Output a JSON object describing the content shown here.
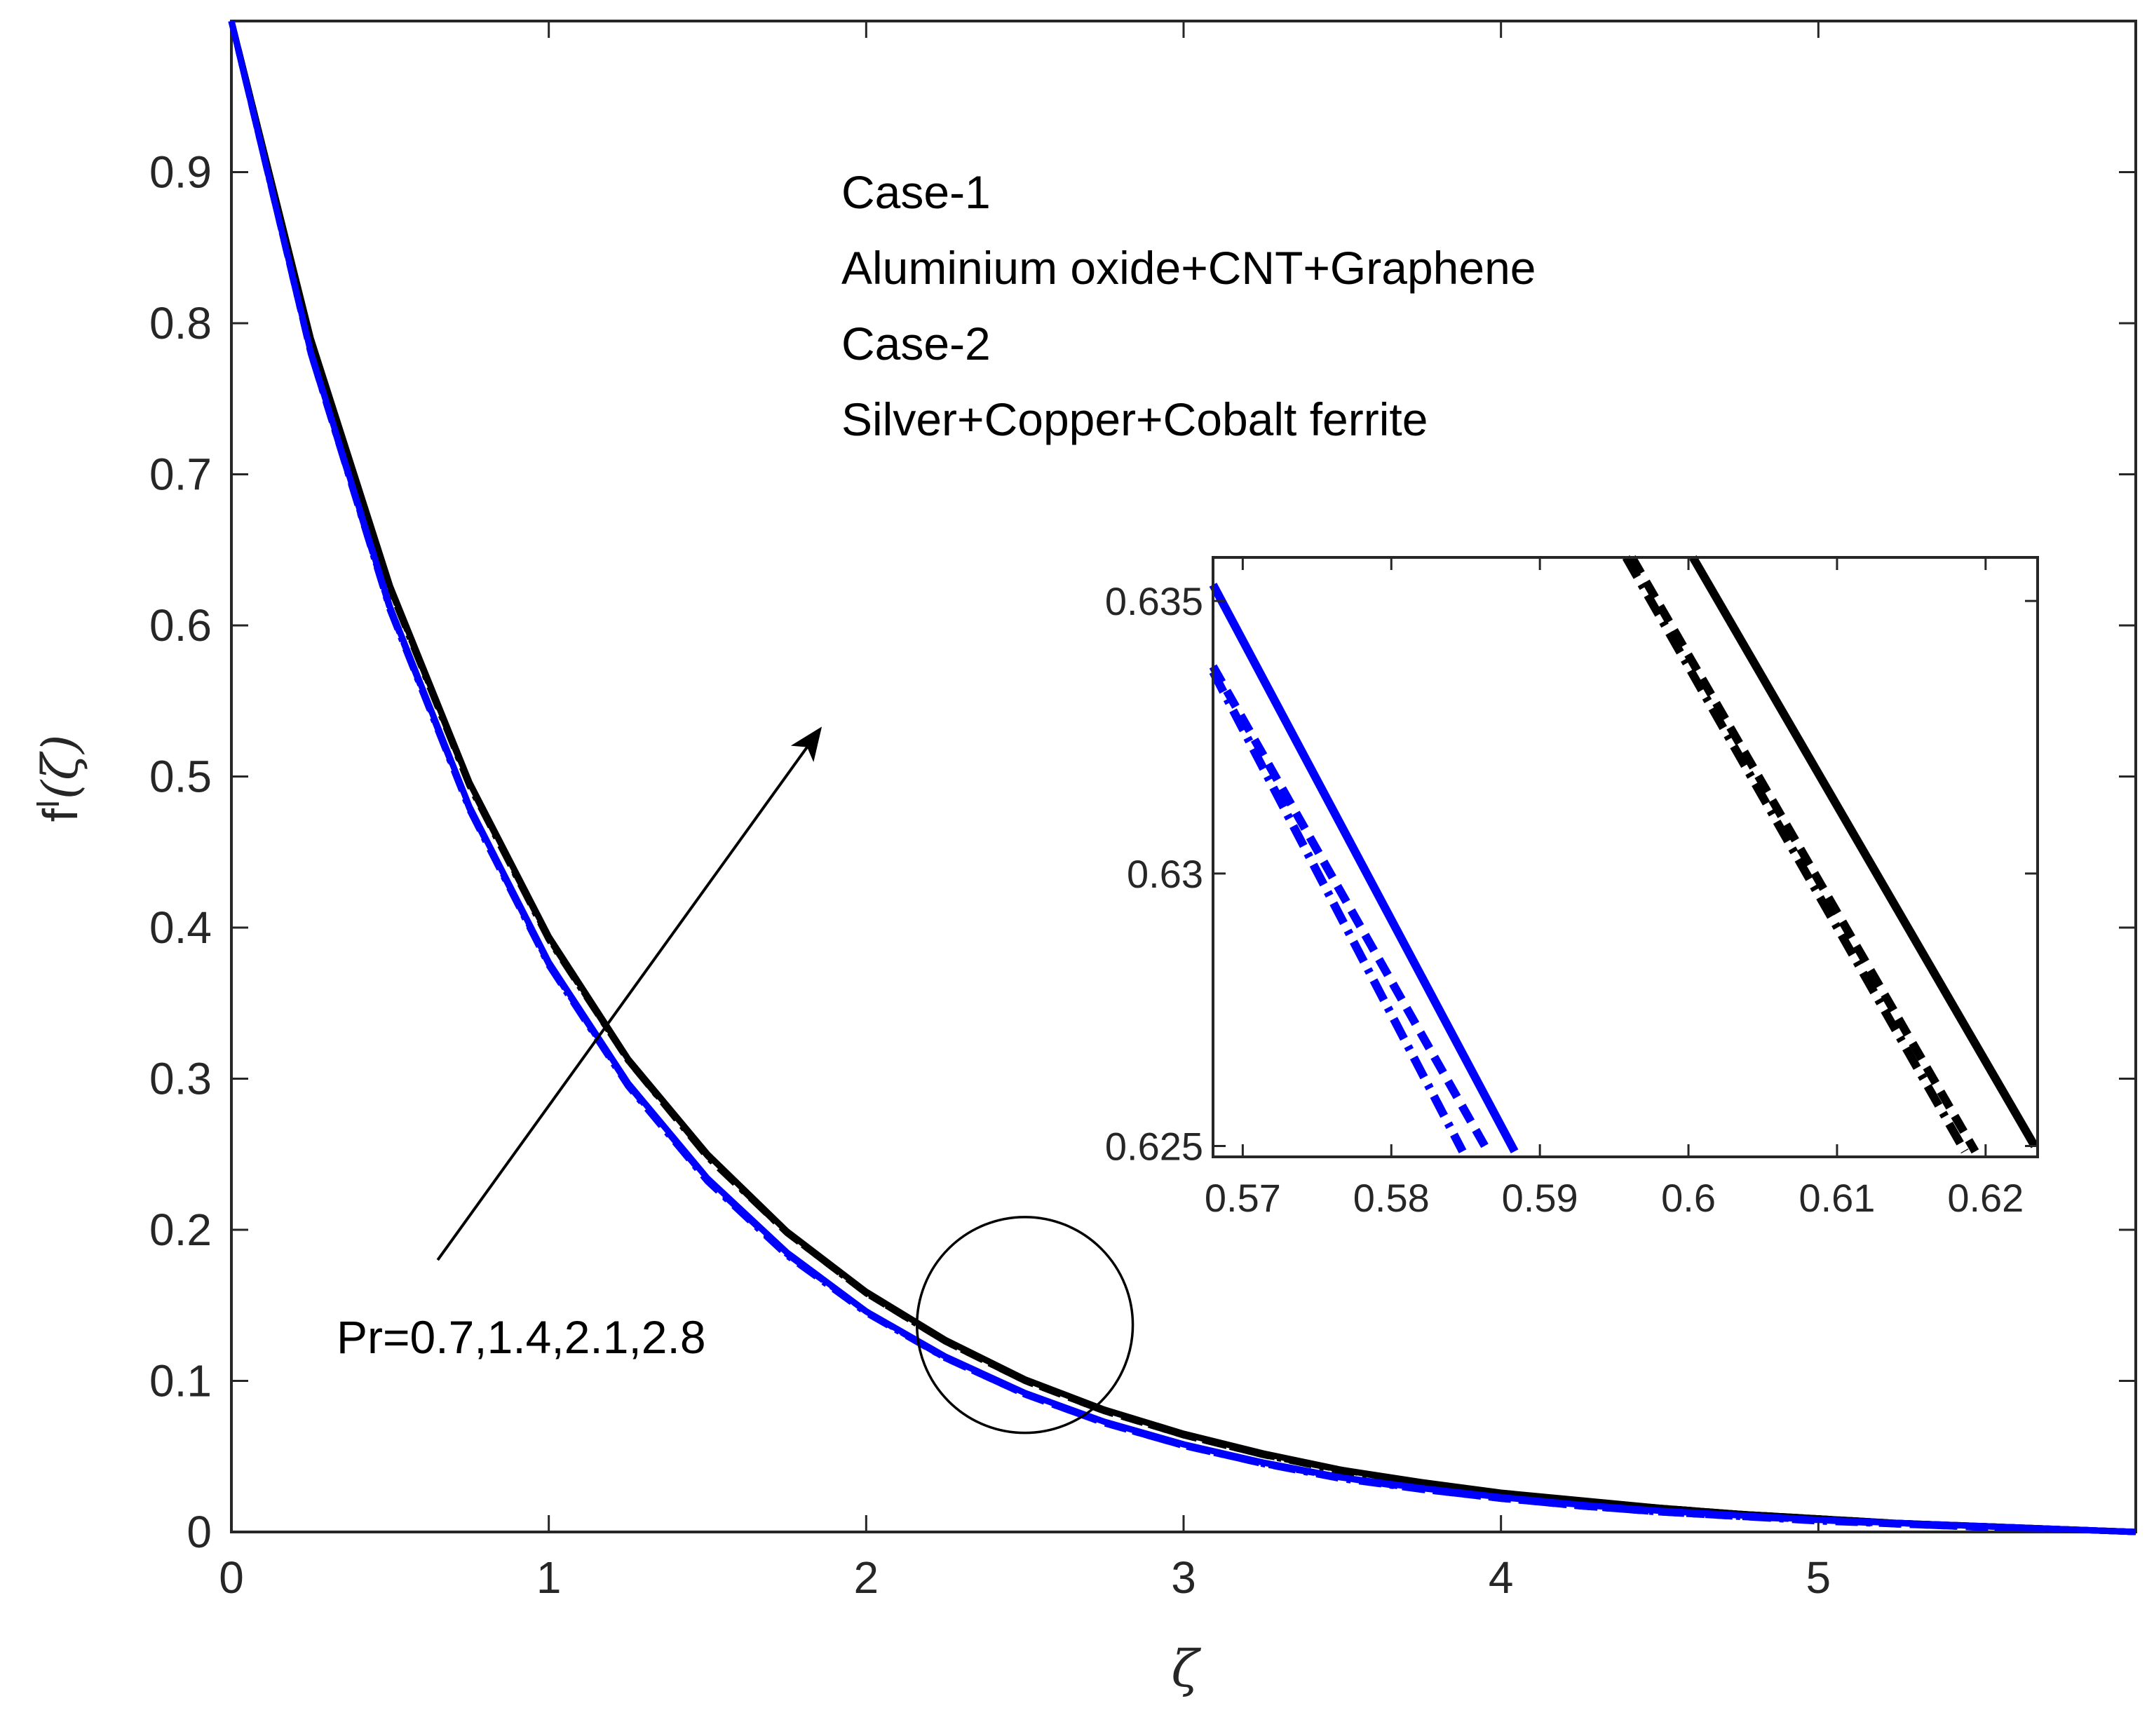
{
  "colors": {
    "case1": "#000000",
    "case2": "#0000ff",
    "axis": "#262626"
  },
  "annotations": {
    "case1_label": "Case-1",
    "case1_desc": "Aluminium oxide+CNT+Graphene",
    "case2_label": "Case-2",
    "case2_desc": "Silver+Copper+Cobalt ferrite",
    "pr_label": "Pr=0.7,1.4,2.1,2.8"
  },
  "chart_data": [
    {
      "name": "main",
      "type": "line",
      "xlabel": "ζ",
      "ylabel_main": "f",
      "ylabel_sup": "I",
      "ylabel_arg": "(ζ)",
      "xlim": [
        0,
        6
      ],
      "ylim": [
        0,
        1
      ],
      "xticks": [
        0,
        1,
        2,
        3,
        4,
        5
      ],
      "yticks": [
        0,
        0.1,
        0.2,
        0.3,
        0.4,
        0.5,
        0.6,
        0.7,
        0.8,
        0.9
      ],
      "xtick_labels": [
        "0",
        "1",
        "2",
        "3",
        "4",
        "5"
      ],
      "ytick_labels": [
        "0",
        "0.1",
        "0.2",
        "0.3",
        "0.4",
        "0.5",
        "0.6",
        "0.7",
        "0.8",
        "0.9"
      ],
      "x": [
        0,
        0.25,
        0.5,
        0.75,
        1.0,
        1.25,
        1.5,
        1.75,
        2.0,
        2.25,
        2.5,
        2.75,
        3.0,
        3.25,
        3.5,
        3.75,
        4.0,
        4.25,
        4.5,
        4.75,
        5.0,
        5.25,
        5.5,
        5.75,
        6.0
      ],
      "series": [
        {
          "name": "Case-1, Pr=0.7",
          "case": "case1",
          "dash": "solid",
          "values": [
            1.0,
            0.79,
            0.626,
            0.496,
            0.394,
            0.313,
            0.25,
            0.199,
            0.159,
            0.127,
            0.101,
            0.081,
            0.065,
            0.052,
            0.041,
            0.033,
            0.026,
            0.021,
            0.016,
            0.012,
            0.009,
            0.006,
            0.004,
            0.002,
            0.0
          ]
        },
        {
          "name": "Case-1, Pr=1.4",
          "case": "case1",
          "dash": "dash",
          "values": [
            1.0,
            0.789,
            0.625,
            0.495,
            0.393,
            0.312,
            0.249,
            0.198,
            0.158,
            0.126,
            0.1,
            0.08,
            0.064,
            0.051,
            0.041,
            0.032,
            0.026,
            0.02,
            0.016,
            0.012,
            0.009,
            0.006,
            0.004,
            0.002,
            0.0
          ]
        },
        {
          "name": "Case-1, Pr=2.1",
          "case": "case1",
          "dash": "dashdot",
          "values": [
            1.0,
            0.789,
            0.624,
            0.494,
            0.392,
            0.312,
            0.248,
            0.198,
            0.158,
            0.126,
            0.1,
            0.08,
            0.064,
            0.051,
            0.04,
            0.032,
            0.025,
            0.02,
            0.016,
            0.012,
            0.009,
            0.006,
            0.004,
            0.002,
            0.0
          ]
        },
        {
          "name": "Case-2, Pr=0.7",
          "case": "case2",
          "dash": "solid",
          "values": [
            1.0,
            0.781,
            0.612,
            0.48,
            0.377,
            0.297,
            0.234,
            0.185,
            0.146,
            0.116,
            0.092,
            0.073,
            0.058,
            0.046,
            0.036,
            0.029,
            0.023,
            0.018,
            0.014,
            0.011,
            0.008,
            0.006,
            0.004,
            0.002,
            0.0
          ]
        },
        {
          "name": "Case-2, Pr=1.4",
          "case": "case2",
          "dash": "dash",
          "values": [
            1.0,
            0.78,
            0.611,
            0.479,
            0.376,
            0.296,
            0.233,
            0.184,
            0.146,
            0.115,
            0.091,
            0.072,
            0.057,
            0.045,
            0.036,
            0.028,
            0.022,
            0.017,
            0.013,
            0.01,
            0.008,
            0.005,
            0.003,
            0.002,
            0.0
          ]
        },
        {
          "name": "Case-2, Pr=2.1",
          "case": "case2",
          "dash": "dashdot",
          "values": [
            1.0,
            0.78,
            0.61,
            0.478,
            0.375,
            0.295,
            0.232,
            0.183,
            0.145,
            0.115,
            0.091,
            0.072,
            0.057,
            0.045,
            0.035,
            0.028,
            0.022,
            0.017,
            0.013,
            0.01,
            0.007,
            0.005,
            0.003,
            0.002,
            0.0
          ]
        }
      ],
      "circle_marker": {
        "x": 2.5,
        "y": 0.137,
        "radius_x": 0.34
      },
      "arrow": {
        "from": [
          0.65,
          0.18
        ],
        "to": [
          1.85,
          0.53
        ]
      }
    },
    {
      "name": "inset",
      "type": "line",
      "xlim": [
        0.568,
        0.6235
      ],
      "ylim": [
        0.6248,
        0.6358
      ],
      "xticks": [
        0.57,
        0.58,
        0.59,
        0.6,
        0.61,
        0.62
      ],
      "yticks": [
        0.625,
        0.63,
        0.635
      ],
      "xtick_labels": [
        "0.57",
        "0.58",
        "0.59",
        "0.6",
        "0.61",
        "0.62"
      ],
      "ytick_labels": [
        "0.625",
        "0.63",
        "0.635"
      ],
      "series": [
        {
          "name": "Case-2 solid",
          "case": "case2",
          "dash": "solid",
          "x": [
            0.568,
            0.5883
          ],
          "y": [
            0.6353,
            0.6249
          ]
        },
        {
          "name": "Case-2 dash",
          "case": "case2",
          "dash": "dash",
          "x": [
            0.568,
            0.5865
          ],
          "y": [
            0.6338,
            0.6249
          ]
        },
        {
          "name": "Case-2 dashdot",
          "case": "case2",
          "dash": "dashdot",
          "x": [
            0.568,
            0.5848
          ],
          "y": [
            0.6337,
            0.6249
          ]
        },
        {
          "name": "Case-1 solid",
          "case": "case1",
          "dash": "solid",
          "x": [
            0.6003,
            0.6233
          ],
          "y": [
            0.6358,
            0.625
          ]
        },
        {
          "name": "Case-1 dash",
          "case": "case1",
          "dash": "dash",
          "x": [
            0.5962,
            0.6193
          ],
          "y": [
            0.6358,
            0.6249
          ]
        },
        {
          "name": "Case-1 dashdot",
          "case": "case1",
          "dash": "dashdot",
          "x": [
            0.5958,
            0.6186
          ],
          "y": [
            0.6358,
            0.6249
          ]
        }
      ]
    }
  ]
}
